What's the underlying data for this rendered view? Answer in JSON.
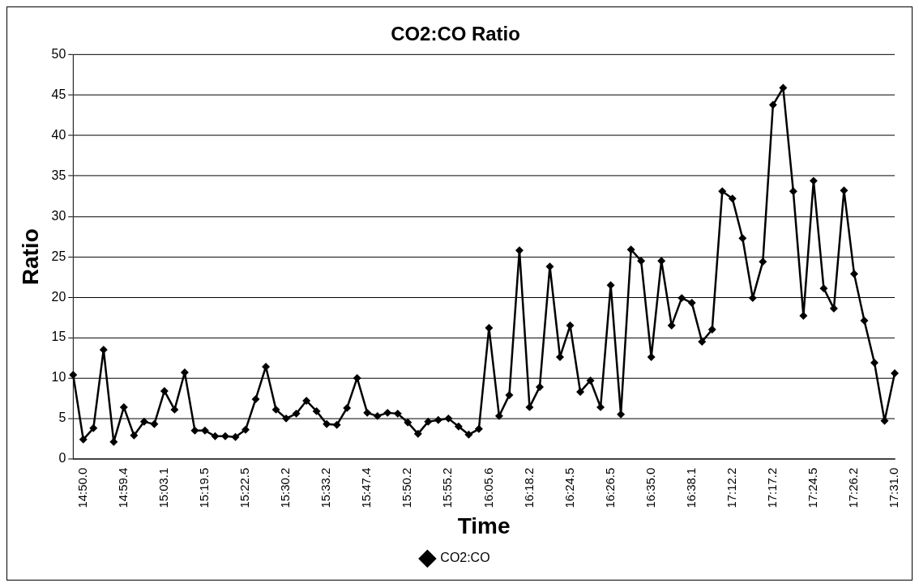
{
  "chart_data": {
    "type": "line",
    "title": "CO2:CO Ratio",
    "xlabel": "Time",
    "ylabel": "Ratio",
    "categories": [
      null,
      "14:50.0",
      null,
      null,
      null,
      "14:59.4",
      null,
      null,
      null,
      "15:03.1",
      null,
      null,
      null,
      "15:19.5",
      null,
      null,
      null,
      "15:22.5",
      null,
      null,
      null,
      "15:30.2",
      null,
      null,
      null,
      "15:33.2",
      null,
      null,
      null,
      "15:47.4",
      null,
      null,
      null,
      "15:50.2",
      null,
      null,
      null,
      "15:55.2",
      null,
      null,
      null,
      "16:05.6",
      null,
      null,
      null,
      "16:18.2",
      null,
      null,
      null,
      "16:24.5",
      null,
      null,
      null,
      "16:26.5",
      null,
      null,
      null,
      "16:35.0",
      null,
      null,
      null,
      "16:38.1",
      null,
      null,
      null,
      "17:12.2",
      null,
      null,
      null,
      "17:17.2",
      null,
      null,
      null,
      "17:24.5",
      null,
      null,
      null,
      "17:26.2",
      null,
      null,
      null,
      "17:31.0"
    ],
    "series": [
      {
        "name": "CO2:CO",
        "color": "#000000",
        "values": [
          10.4,
          2.4,
          3.8,
          13.5,
          2.1,
          6.4,
          2.9,
          4.6,
          4.3,
          8.4,
          6.1,
          10.7,
          3.5,
          3.5,
          2.8,
          2.8,
          2.7,
          3.6,
          7.4,
          11.4,
          6.1,
          5.0,
          5.6,
          7.2,
          5.9,
          4.3,
          4.2,
          6.3,
          10.0,
          5.7,
          5.3,
          5.7,
          5.6,
          4.5,
          3.1,
          4.6,
          4.8,
          5.0,
          4.0,
          3.0,
          3.7,
          16.2,
          5.3,
          7.9,
          25.8,
          6.4,
          8.9,
          23.8,
          12.6,
          16.5,
          8.3,
          9.7,
          6.4,
          21.5,
          5.5,
          25.9,
          24.5,
          12.6,
          24.5,
          16.5,
          19.9,
          19.3,
          14.5,
          16.0,
          33.1,
          32.2,
          27.3,
          19.9,
          24.4,
          43.8,
          45.9,
          33.1,
          17.7,
          34.4,
          21.1,
          18.6,
          33.2,
          22.9,
          17.1,
          11.9,
          4.7,
          10.6
        ]
      }
    ],
    "ylim": [
      0,
      50
    ],
    "yticks": [
      0,
      5,
      10,
      15,
      20,
      25,
      30,
      35,
      40,
      45,
      50
    ],
    "grid": "y",
    "legend": "bottom",
    "marker": "diamond",
    "line_style": "solid"
  }
}
